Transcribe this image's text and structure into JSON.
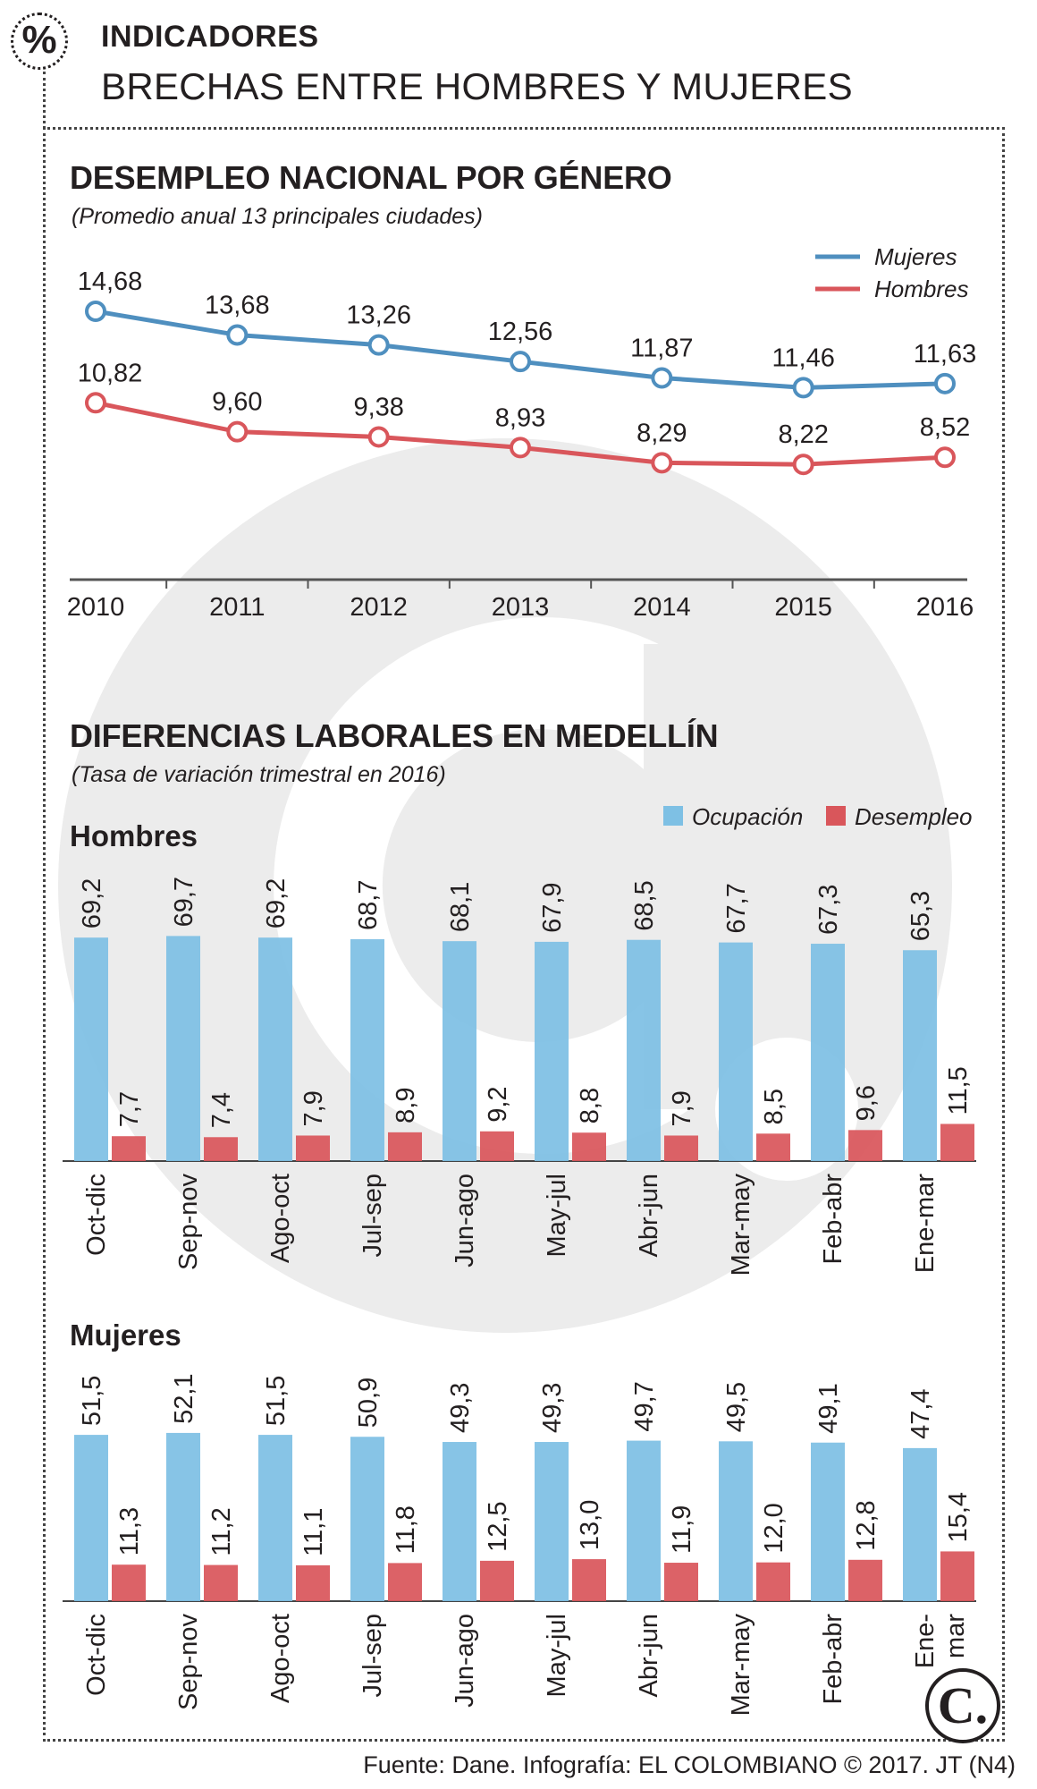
{
  "header": {
    "badge_symbol": "%",
    "kicker": "INDICADORES",
    "headline": "BRECHAS ENTRE HOMBRES Y MUJERES"
  },
  "section1": {
    "title": "DESEMPLEO NACIONAL POR GÉNERO",
    "subtitle": "(Promedio anual 13 principales ciudades)"
  },
  "section2": {
    "title": "DIFERENCIAS LABORALES EN MEDELLÍN",
    "subtitle": "(Tasa de variación trimestral en 2016)",
    "group_hombres": "Hombres",
    "group_mujeres": "Mujeres"
  },
  "footer": {
    "source": "Fuente: Dane. Infografía: EL COLOMBIANO © 2017. JT (N4)",
    "logo_letter": "C."
  },
  "colors": {
    "mujeres_line": "#4f8fbf",
    "hombres_line": "#d9565b",
    "ocupacion_bar": "#7ec0e4",
    "desempleo_bar": "#d9565b",
    "watermark": "#e9e9e9"
  },
  "chart_data": [
    {
      "type": "line",
      "title": "DESEMPLEO NACIONAL POR GÉNERO",
      "subtitle": "(Promedio anual 13 principales ciudades)",
      "x": [
        "2010",
        "2011",
        "2012",
        "2013",
        "2014",
        "2015",
        "2016"
      ],
      "series": [
        {
          "name": "Mujeres",
          "values": [
            14.68,
            13.68,
            13.26,
            12.56,
            11.87,
            11.46,
            11.63
          ],
          "labels": [
            "14,68",
            "13,68",
            "13,26",
            "12,56",
            "11,87",
            "11,46",
            "11,63"
          ]
        },
        {
          "name": "Hombres",
          "values": [
            10.82,
            9.6,
            9.38,
            8.93,
            8.29,
            8.22,
            8.52
          ],
          "labels": [
            "10,82",
            "9,60",
            "9,38",
            "8,93",
            "8,29",
            "8,22",
            "8,52"
          ]
        }
      ],
      "ylim": [
        5,
        16
      ],
      "legend": "top-right"
    },
    {
      "type": "bar",
      "title": "Hombres",
      "categories": [
        "Oct-dic",
        "Sep-nov",
        "Ago-oct",
        "Jul-sep",
        "Jun-ago",
        "May-jul",
        "Abr-jun",
        "Mar-may",
        "Feb-abr",
        "Ene-mar"
      ],
      "series": [
        {
          "name": "Ocupación",
          "values": [
            69.2,
            69.7,
            69.2,
            68.7,
            68.1,
            67.9,
            68.5,
            67.7,
            67.3,
            65.3
          ],
          "labels": [
            "69,2",
            "69,7",
            "69,2",
            "68,7",
            "68,1",
            "67,9",
            "68,5",
            "67,7",
            "67,3",
            "65,3"
          ]
        },
        {
          "name": "Desempleo",
          "values": [
            7.7,
            7.4,
            7.9,
            8.9,
            9.2,
            8.8,
            7.9,
            8.5,
            9.6,
            11.5
          ],
          "labels": [
            "7,7",
            "7,4",
            "7,9",
            "8,9",
            "9,2",
            "8,8",
            "7,9",
            "8,5",
            "9,6",
            "11,5"
          ]
        }
      ],
      "ylim": [
        0,
        80
      ],
      "legend": "top-right"
    },
    {
      "type": "bar",
      "title": "Mujeres",
      "categories": [
        "Oct-dic",
        "Sep-nov",
        "Ago-oct",
        "Jul-sep",
        "Jun-ago",
        "May-jul",
        "Abr-jun",
        "Mar-may",
        "Feb-abr",
        "Ene-mar"
      ],
      "category_lines": [
        [
          "Oct-dic"
        ],
        [
          "Sep-nov"
        ],
        [
          "Ago-oct"
        ],
        [
          "Jul-sep"
        ],
        [
          "Jun-ago"
        ],
        [
          "May-jul"
        ],
        [
          "Abr-jun"
        ],
        [
          "Mar-may"
        ],
        [
          "Feb-abr"
        ],
        [
          "Ene-",
          "mar"
        ]
      ],
      "series": [
        {
          "name": "Ocupación",
          "values": [
            51.5,
            52.1,
            51.5,
            50.9,
            49.3,
            49.3,
            49.7,
            49.5,
            49.1,
            47.4
          ],
          "labels": [
            "51,5",
            "52,1",
            "51,5",
            "50,9",
            "49,3",
            "49,3",
            "49,7",
            "49,5",
            "49,1",
            "47,4"
          ]
        },
        {
          "name": "Desempleo",
          "values": [
            11.3,
            11.2,
            11.1,
            11.8,
            12.5,
            13.0,
            11.9,
            12.0,
            12.8,
            15.4
          ],
          "labels": [
            "11,3",
            "11,2",
            "11,1",
            "11,8",
            "12,5",
            "13,0",
            "11,9",
            "12,0",
            "12,8",
            "15,4"
          ]
        }
      ],
      "ylim": [
        0,
        60
      ]
    }
  ]
}
